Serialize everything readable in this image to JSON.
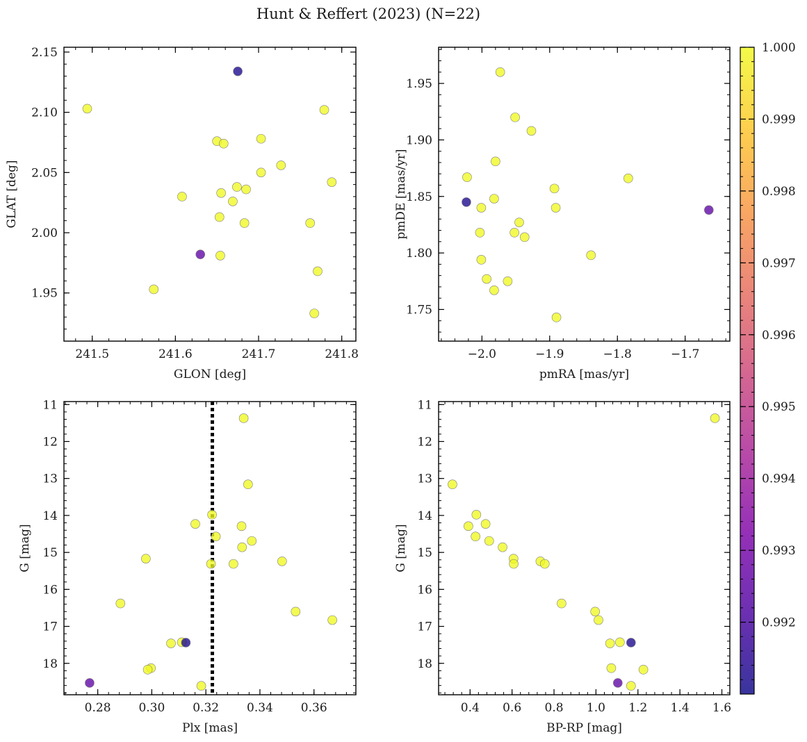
{
  "figure": {
    "title": "Hunt & Reffert (2023) (N=22)"
  },
  "colorbar": {
    "colormap": "plasma",
    "range": [
      0.991,
      1.0
    ],
    "ticks": [
      0.992,
      0.993,
      0.994,
      0.995,
      0.996,
      0.997,
      0.998,
      0.999,
      1.0
    ],
    "tick_labels": [
      "0.992",
      "0.993",
      "0.994",
      "0.995",
      "0.996",
      "0.997",
      "0.998",
      "0.999",
      "1.000"
    ]
  },
  "chart_data": [
    {
      "type": "scatter",
      "xlabel": "GLON [deg]",
      "ylabel": "GLAT [deg]",
      "xlim": [
        241.466,
        241.817
      ],
      "ylim": [
        1.91,
        2.154
      ],
      "y_inverted": false,
      "xticks": [
        241.5,
        241.6,
        241.7,
        241.8
      ],
      "xtick_labels": [
        "241.5",
        "241.6",
        "241.7",
        "241.8"
      ],
      "yticks": [
        1.95,
        2.0,
        2.05,
        2.1,
        2.15
      ],
      "ytick_labels": [
        "1.95",
        "2.00",
        "2.05",
        "2.10",
        "2.15"
      ],
      "points": [
        {
          "x": 241.494,
          "y": 2.103,
          "c": 1.0
        },
        {
          "x": 241.675,
          "y": 2.134,
          "c": 0.9912
        },
        {
          "x": 241.779,
          "y": 2.102,
          "c": 1.0
        },
        {
          "x": 241.65,
          "y": 2.076,
          "c": 1.0
        },
        {
          "x": 241.658,
          "y": 2.074,
          "c": 1.0
        },
        {
          "x": 241.703,
          "y": 2.078,
          "c": 1.0
        },
        {
          "x": 241.727,
          "y": 2.056,
          "c": 1.0
        },
        {
          "x": 241.703,
          "y": 2.05,
          "c": 1.0
        },
        {
          "x": 241.788,
          "y": 2.042,
          "c": 1.0
        },
        {
          "x": 241.674,
          "y": 2.038,
          "c": 1.0
        },
        {
          "x": 241.685,
          "y": 2.036,
          "c": 1.0
        },
        {
          "x": 241.655,
          "y": 2.033,
          "c": 1.0
        },
        {
          "x": 241.608,
          "y": 2.03,
          "c": 1.0
        },
        {
          "x": 241.669,
          "y": 2.026,
          "c": 1.0
        },
        {
          "x": 241.653,
          "y": 2.013,
          "c": 1.0
        },
        {
          "x": 241.683,
          "y": 2.008,
          "c": 1.0
        },
        {
          "x": 241.762,
          "y": 2.008,
          "c": 1.0
        },
        {
          "x": 241.63,
          "y": 1.982,
          "c": 0.9925
        },
        {
          "x": 241.654,
          "y": 1.981,
          "c": 1.0
        },
        {
          "x": 241.771,
          "y": 1.968,
          "c": 1.0
        },
        {
          "x": 241.574,
          "y": 1.953,
          "c": 1.0
        },
        {
          "x": 241.767,
          "y": 1.933,
          "c": 1.0
        }
      ]
    },
    {
      "type": "scatter",
      "xlabel": "pmRA [mas/yr]",
      "ylabel": "pmDE [mas/yr]",
      "xlim": [
        -2.064,
        -1.634
      ],
      "ylim": [
        1.722,
        1.982
      ],
      "y_inverted": false,
      "xticks": [
        -2.0,
        -1.9,
        -1.8,
        -1.7
      ],
      "xtick_labels": [
        "−2.0",
        "−1.9",
        "−1.8",
        "−1.7"
      ],
      "yticks": [
        1.75,
        1.8,
        1.85,
        1.9,
        1.95
      ],
      "ytick_labels": [
        "1.75",
        "1.80",
        "1.85",
        "1.90",
        "1.95"
      ],
      "points": [
        {
          "x": -1.973,
          "y": 1.96,
          "c": 1.0
        },
        {
          "x": -1.951,
          "y": 1.92,
          "c": 1.0
        },
        {
          "x": -1.927,
          "y": 1.908,
          "c": 1.0
        },
        {
          "x": -1.98,
          "y": 1.881,
          "c": 1.0
        },
        {
          "x": -2.022,
          "y": 1.867,
          "c": 1.0
        },
        {
          "x": -1.784,
          "y": 1.866,
          "c": 1.0
        },
        {
          "x": -1.893,
          "y": 1.857,
          "c": 1.0
        },
        {
          "x": -1.982,
          "y": 1.848,
          "c": 1.0
        },
        {
          "x": -2.023,
          "y": 1.845,
          "c": 0.9912
        },
        {
          "x": -2.001,
          "y": 1.84,
          "c": 1.0
        },
        {
          "x": -1.891,
          "y": 1.84,
          "c": 1.0
        },
        {
          "x": -1.665,
          "y": 1.838,
          "c": 0.9925
        },
        {
          "x": -1.945,
          "y": 1.827,
          "c": 1.0
        },
        {
          "x": -2.003,
          "y": 1.818,
          "c": 1.0
        },
        {
          "x": -1.952,
          "y": 1.818,
          "c": 1.0
        },
        {
          "x": -1.937,
          "y": 1.814,
          "c": 1.0
        },
        {
          "x": -1.839,
          "y": 1.798,
          "c": 1.0
        },
        {
          "x": -2.001,
          "y": 1.794,
          "c": 1.0
        },
        {
          "x": -1.993,
          "y": 1.777,
          "c": 1.0
        },
        {
          "x": -1.962,
          "y": 1.775,
          "c": 1.0
        },
        {
          "x": -1.982,
          "y": 1.767,
          "c": 1.0
        },
        {
          "x": -1.89,
          "y": 1.743,
          "c": 1.0
        }
      ]
    },
    {
      "type": "scatter",
      "xlabel": "Plx [mas]",
      "ylabel": "G [mag]",
      "xlim": [
        0.2675,
        0.3755
      ],
      "ylim": [
        10.92,
        18.85
      ],
      "y_inverted": true,
      "vline": {
        "x": 0.3224,
        "style": "dotted",
        "color": "#000000"
      },
      "xticks": [
        0.28,
        0.3,
        0.32,
        0.34,
        0.36
      ],
      "xtick_labels": [
        "0.28",
        "0.30",
        "0.32",
        "0.34",
        "0.36"
      ],
      "yticks": [
        11,
        12,
        13,
        14,
        15,
        16,
        17,
        18
      ],
      "ytick_labels": [
        "11",
        "12",
        "13",
        "14",
        "15",
        "16",
        "17",
        "18"
      ],
      "points": [
        {
          "x": 0.334,
          "y": 11.37,
          "c": 1.0
        },
        {
          "x": 0.3356,
          "y": 13.16,
          "c": 1.0
        },
        {
          "x": 0.3161,
          "y": 14.23,
          "c": 1.0
        },
        {
          "x": 0.3223,
          "y": 13.98,
          "c": 1.0
        },
        {
          "x": 0.3332,
          "y": 14.29,
          "c": 1.0
        },
        {
          "x": 0.3237,
          "y": 14.57,
          "c": 1.0
        },
        {
          "x": 0.337,
          "y": 14.69,
          "c": 1.0
        },
        {
          "x": 0.3334,
          "y": 14.86,
          "c": 1.0
        },
        {
          "x": 0.2978,
          "y": 15.17,
          "c": 1.0
        },
        {
          "x": 0.3482,
          "y": 15.24,
          "c": 1.0
        },
        {
          "x": 0.3219,
          "y": 15.31,
          "c": 1.0
        },
        {
          "x": 0.3302,
          "y": 15.31,
          "c": 1.0
        },
        {
          "x": 0.2884,
          "y": 16.38,
          "c": 1.0
        },
        {
          "x": 0.3532,
          "y": 16.6,
          "c": 1.0
        },
        {
          "x": 0.3668,
          "y": 16.83,
          "c": 1.0
        },
        {
          "x": 0.3126,
          "y": 17.44,
          "c": 0.9912
        },
        {
          "x": 0.3111,
          "y": 17.43,
          "c": 1.0
        },
        {
          "x": 0.3071,
          "y": 17.46,
          "c": 1.0
        },
        {
          "x": 0.2997,
          "y": 18.13,
          "c": 1.0
        },
        {
          "x": 0.2985,
          "y": 18.17,
          "c": 1.0
        },
        {
          "x": 0.277,
          "y": 18.53,
          "c": 0.9925
        },
        {
          "x": 0.3183,
          "y": 18.61,
          "c": 1.0
        }
      ]
    },
    {
      "type": "scatter",
      "xlabel": "BP-RP [mag]",
      "ylabel": "G [mag]",
      "xlim": [
        0.25,
        1.638
      ],
      "ylim": [
        10.92,
        18.85
      ],
      "y_inverted": true,
      "xticks": [
        0.4,
        0.6,
        0.8,
        1.0,
        1.2,
        1.4,
        1.6
      ],
      "xtick_labels": [
        "0.4",
        "0.6",
        "0.8",
        "1.0",
        "1.2",
        "1.4",
        "1.6"
      ],
      "yticks": [
        11,
        12,
        13,
        14,
        15,
        16,
        17,
        18
      ],
      "ytick_labels": [
        "11",
        "12",
        "13",
        "14",
        "15",
        "16",
        "17",
        "18"
      ],
      "points": [
        {
          "x": 1.567,
          "y": 11.37,
          "c": 1.0
        },
        {
          "x": 0.316,
          "y": 13.16,
          "c": 1.0
        },
        {
          "x": 0.43,
          "y": 13.98,
          "c": 1.0
        },
        {
          "x": 0.474,
          "y": 14.23,
          "c": 1.0
        },
        {
          "x": 0.392,
          "y": 14.29,
          "c": 1.0
        },
        {
          "x": 0.426,
          "y": 14.57,
          "c": 1.0
        },
        {
          "x": 0.491,
          "y": 14.69,
          "c": 1.0
        },
        {
          "x": 0.555,
          "y": 14.86,
          "c": 1.0
        },
        {
          "x": 0.607,
          "y": 15.17,
          "c": 1.0
        },
        {
          "x": 0.735,
          "y": 15.24,
          "c": 1.0
        },
        {
          "x": 0.608,
          "y": 15.31,
          "c": 1.0
        },
        {
          "x": 0.756,
          "y": 15.31,
          "c": 1.0
        },
        {
          "x": 0.836,
          "y": 16.38,
          "c": 1.0
        },
        {
          "x": 0.996,
          "y": 16.6,
          "c": 1.0
        },
        {
          "x": 1.012,
          "y": 16.83,
          "c": 1.0
        },
        {
          "x": 1.167,
          "y": 17.44,
          "c": 0.9912
        },
        {
          "x": 1.114,
          "y": 17.43,
          "c": 1.0
        },
        {
          "x": 1.067,
          "y": 17.46,
          "c": 1.0
        },
        {
          "x": 1.073,
          "y": 18.13,
          "c": 1.0
        },
        {
          "x": 1.226,
          "y": 18.17,
          "c": 1.0
        },
        {
          "x": 1.104,
          "y": 18.53,
          "c": 0.9925
        },
        {
          "x": 1.167,
          "y": 18.61,
          "c": 1.0
        }
      ]
    }
  ]
}
